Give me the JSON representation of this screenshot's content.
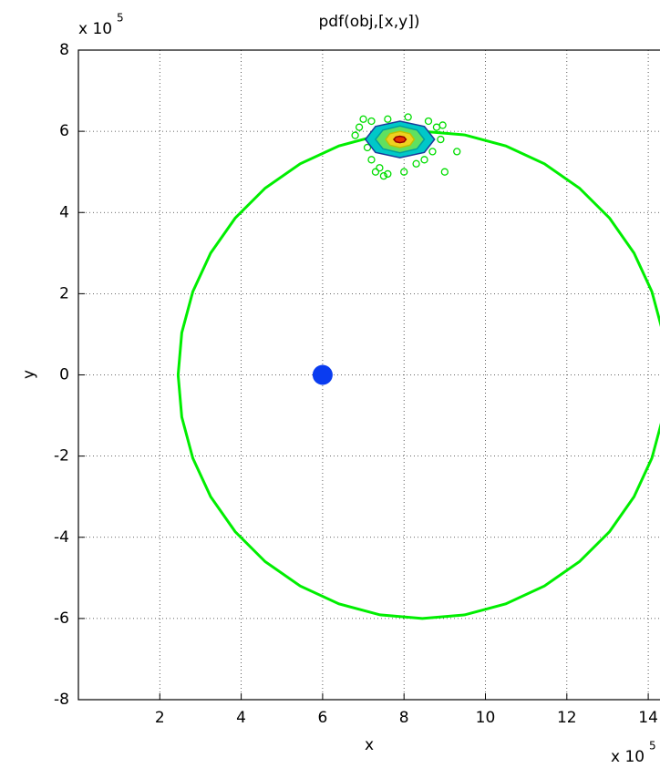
{
  "chart_data": {
    "type": "line",
    "title": "pdf(obj,[x,y])",
    "x_label": "x",
    "y_label": "y",
    "x_multiplier": {
      "base": "x 10",
      "exponent": "5"
    },
    "y_multiplier": {
      "base": "x 10",
      "exponent": "5"
    },
    "xlim": [
      0,
      16
    ],
    "ylim": [
      -8,
      8
    ],
    "xticks": [
      2,
      4,
      6,
      8,
      10,
      12,
      14
    ],
    "yticks": [
      -8,
      -6,
      -4,
      -2,
      0,
      2,
      4,
      6,
      8
    ],
    "grid": true,
    "series": [
      {
        "color": "#00ee00",
        "x": [
          14.45,
          14.36,
          14.09,
          13.65,
          13.05,
          12.31,
          11.45,
          10.5,
          9.49,
          8.45,
          7.41,
          6.4,
          5.45,
          4.59,
          3.85,
          3.25,
          2.81,
          2.54,
          2.45,
          2.54,
          2.81,
          3.25,
          3.85,
          4.59,
          5.45,
          6.4,
          7.41,
          8.45,
          9.49,
          10.5,
          11.45,
          12.31,
          13.05,
          13.65,
          14.09,
          14.36,
          14.45
        ],
        "values": [
          0,
          1.04,
          2.05,
          3.0,
          3.86,
          4.6,
          5.2,
          5.64,
          5.91,
          6,
          5.91,
          5.64,
          5.2,
          4.6,
          3.86,
          3.0,
          2.05,
          1.04,
          0,
          -1.04,
          -2.05,
          -3.0,
          -3.86,
          -4.6,
          -5.2,
          -5.64,
          -5.91,
          -6,
          -5.91,
          -5.64,
          -5.2,
          -4.6,
          -3.86,
          -3.0,
          -2.05,
          -1.04,
          0
        ]
      }
    ],
    "samples": {
      "color": "#00dd00",
      "x": [
        7.0,
        7.2,
        6.9,
        6.8,
        7.1,
        7.2,
        7.4,
        7.5,
        7.6,
        8.0,
        8.3,
        8.7,
        8.9,
        8.8,
        8.6,
        8.1,
        7.6,
        9.0,
        9.3,
        8.95,
        7.3,
        8.5
      ],
      "values": [
        6.3,
        6.25,
        6.1,
        5.9,
        5.6,
        5.3,
        5.1,
        4.9,
        4.95,
        5.0,
        5.2,
        5.5,
        5.8,
        6.1,
        6.25,
        6.35,
        6.3,
        5.0,
        5.5,
        6.15,
        5.0,
        5.3
      ]
    },
    "contours": [
      {
        "color": "#1a3a9a",
        "fill": "#00c8c8",
        "x": [
          8.75,
          8.5,
          7.9,
          7.3,
          7.05,
          7.3,
          7.9,
          8.5
        ],
        "values": [
          5.8,
          6.12,
          6.25,
          6.12,
          5.8,
          5.48,
          5.35,
          5.48
        ]
      },
      {
        "color": "#00a0a0",
        "fill": "#60e060",
        "x": [
          8.5,
          8.32,
          7.9,
          7.48,
          7.3,
          7.48,
          7.9,
          8.32
        ],
        "values": [
          5.8,
          6.03,
          6.13,
          6.03,
          5.8,
          5.57,
          5.47,
          5.57
        ]
      },
      {
        "color": "#c0c000",
        "fill": "#f0d020",
        "x": [
          8.25,
          8.15,
          7.9,
          7.65,
          7.55,
          7.65,
          7.9,
          8.15
        ],
        "values": [
          5.8,
          5.94,
          6.0,
          5.94,
          5.8,
          5.66,
          5.6,
          5.66
        ]
      },
      {
        "color": "#8b0000",
        "fill": "#e83000",
        "x": [
          8.05,
          8.0,
          7.9,
          7.8,
          7.75,
          7.8,
          7.9,
          8.0
        ],
        "values": [
          5.8,
          5.86,
          5.88,
          5.86,
          5.8,
          5.74,
          5.72,
          5.74
        ]
      }
    ],
    "point": {
      "color": "#0a3cf0",
      "x": 6,
      "value": 0
    }
  }
}
